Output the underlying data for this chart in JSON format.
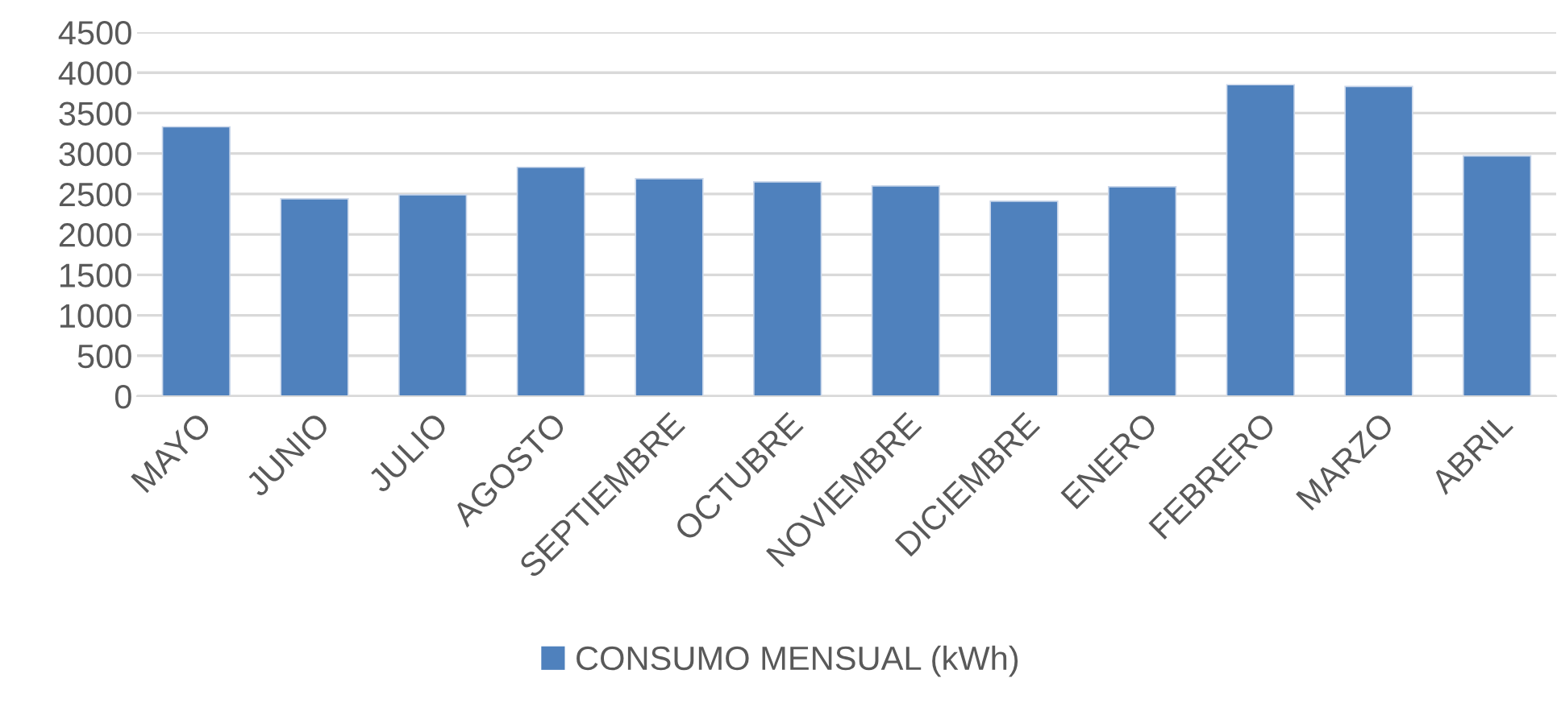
{
  "chart_data": {
    "type": "bar",
    "categories": [
      "MAYO",
      "JUNIO",
      "JULIO",
      "AGOSTO",
      "SEPTIEMBRE",
      "OCTUBRE",
      "NOVIEMBRE",
      "DICIEMBRE",
      "ENERO",
      "FEBRERO",
      "MARZO",
      "ABRIL"
    ],
    "series": [
      {
        "name": "CONSUMO MENSUAL (kWh)",
        "color": "#4f81bd",
        "values": [
          3330,
          2440,
          2490,
          2830,
          2690,
          2650,
          2600,
          2410,
          2590,
          3850,
          3830,
          2970
        ]
      }
    ],
    "ylim": [
      0,
      4500
    ],
    "yticks": [
      0,
      500,
      1000,
      1500,
      2000,
      2500,
      3000,
      3500,
      4000,
      4500
    ],
    "grid": "y",
    "legend": "bottom"
  }
}
